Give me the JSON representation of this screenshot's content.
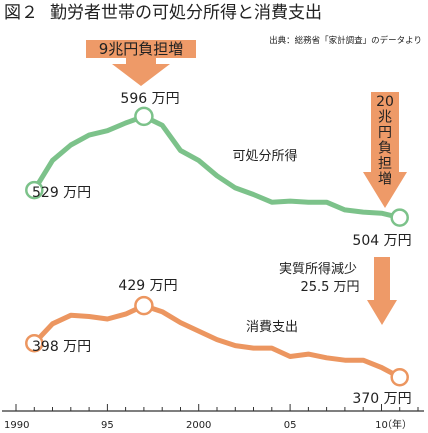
{
  "title": {
    "fig_no": "図２",
    "text": "勤労者世帯の可処分所得と消費支出"
  },
  "source": "出典：総務省「家計調査」のデータより",
  "colors": {
    "income": "#7cc28a",
    "consumption": "#ec9660",
    "arrow": "#ee9a68",
    "axis": "#333333"
  },
  "chart_data": {
    "type": "line",
    "x_label_unit": "（年）",
    "x_ticks": [
      {
        "x": 1990,
        "label": "1990"
      },
      {
        "x": 1995,
        "label": "95"
      },
      {
        "x": 2000,
        "label": "2000"
      },
      {
        "x": 2005,
        "label": "05"
      },
      {
        "x": 2010,
        "label": "10"
      }
    ],
    "xlim": [
      1990,
      2012
    ],
    "grid": false,
    "series": [
      {
        "name": "可処分所得",
        "color": "#7cc28a",
        "x": [
          1991,
          1992,
          1993,
          1994,
          1995,
          1996,
          1997,
          1998,
          1999,
          2000,
          2001,
          2002,
          2003,
          2004,
          2005,
          2006,
          2007,
          2008,
          2009,
          2010,
          2011
        ],
        "values": [
          529,
          556,
          570,
          579,
          583,
          590,
          596,
          588,
          565,
          556,
          542,
          531,
          525,
          518,
          519,
          518,
          518,
          511,
          509,
          508,
          504
        ],
        "start_label": "529 万円",
        "peak_label": "596 万円",
        "end_label": "504 万円",
        "peak_index": 6,
        "end_index": 20
      },
      {
        "name": "消費支出",
        "color": "#ec9660",
        "x": [
          1991,
          1992,
          1993,
          1994,
          1995,
          1996,
          1997,
          1998,
          1999,
          2000,
          2001,
          2002,
          2003,
          2004,
          2005,
          2006,
          2007,
          2008,
          2009,
          2010,
          2011
        ],
        "values": [
          398,
          414,
          421,
          420,
          418,
          422,
          429,
          424,
          415,
          408,
          401,
          396,
          394,
          394,
          387,
          389,
          386,
          384,
          384,
          378,
          370
        ],
        "start_label": "398 万円",
        "peak_label": "429 万円",
        "end_label": "370 万円",
        "peak_index": 6,
        "end_index": 20
      }
    ],
    "annotations": [
      {
        "text": "9兆円負担増"
      },
      {
        "text": "20兆円負担増"
      },
      {
        "line1": "実質所得減少",
        "line2": "25.5 万円"
      }
    ]
  }
}
